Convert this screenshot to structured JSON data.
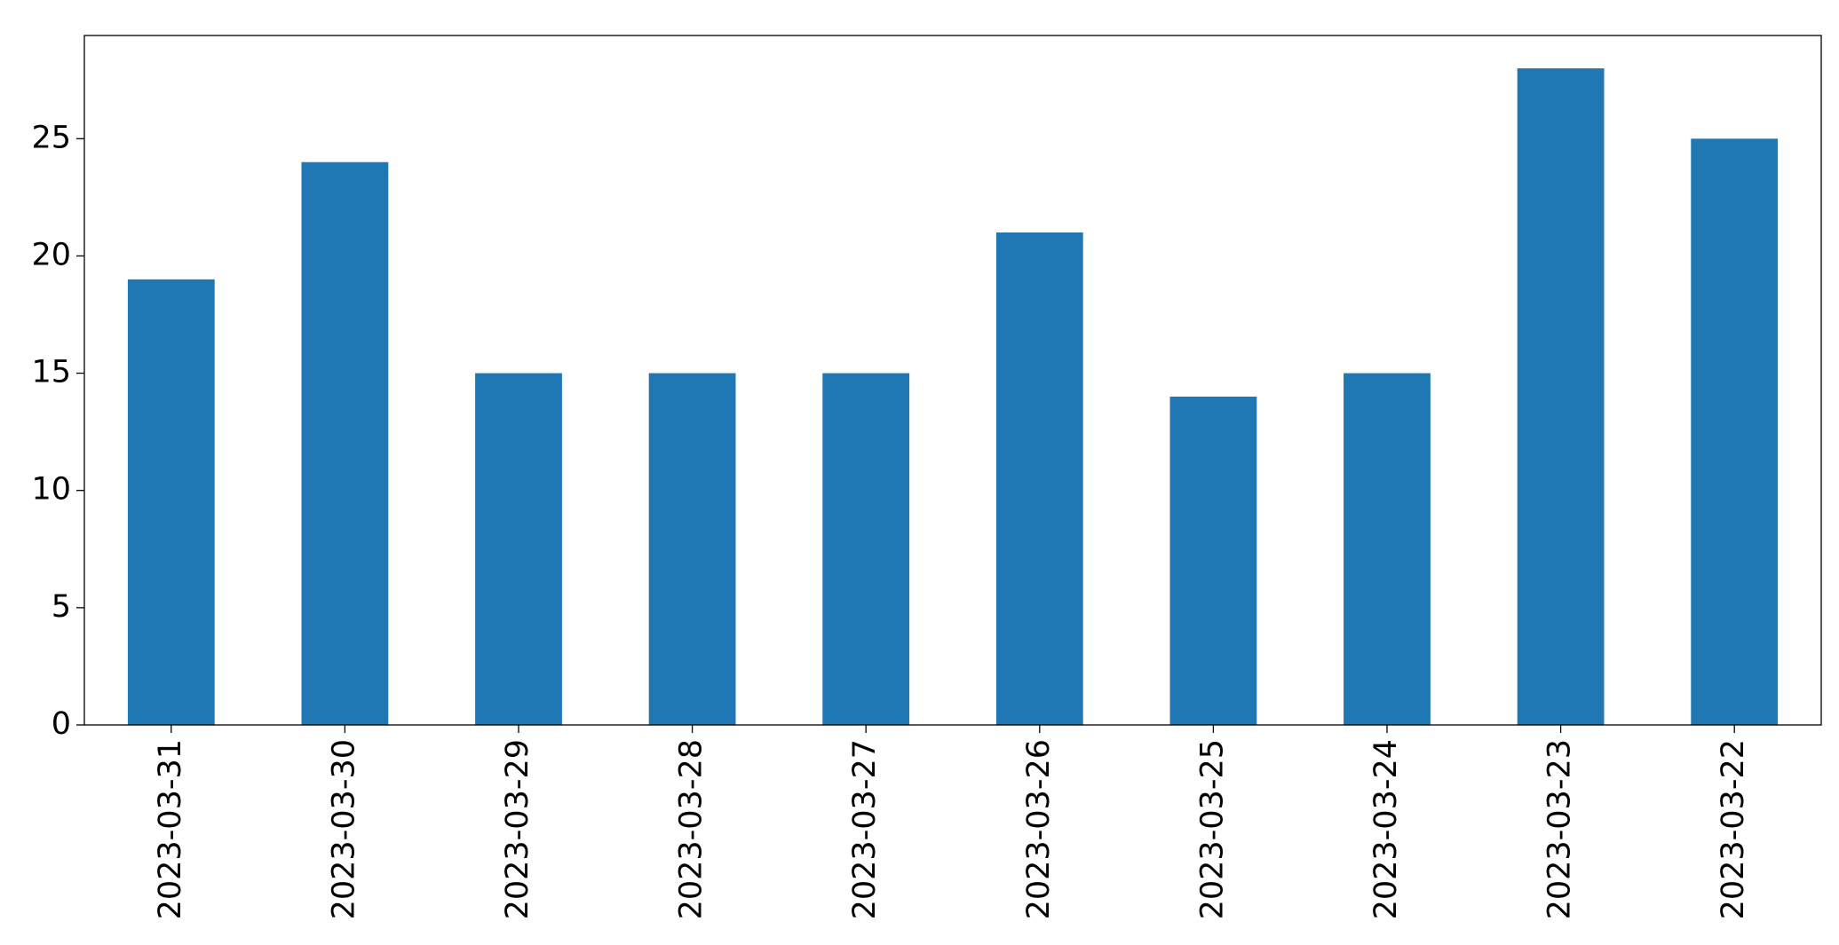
{
  "chart_data": {
    "type": "bar",
    "categories": [
      "2023-03-31",
      "2023-03-30",
      "2023-03-29",
      "2023-03-28",
      "2023-03-27",
      "2023-03-26",
      "2023-03-25",
      "2023-03-24",
      "2023-03-23",
      "2023-03-22"
    ],
    "values": [
      19,
      24,
      15,
      15,
      15,
      21,
      14,
      15,
      28,
      25
    ],
    "color": "#1f77b4",
    "ylim": [
      0,
      29.4
    ],
    "yticks": [
      0,
      5,
      10,
      15,
      20,
      25
    ],
    "grid": false
  }
}
